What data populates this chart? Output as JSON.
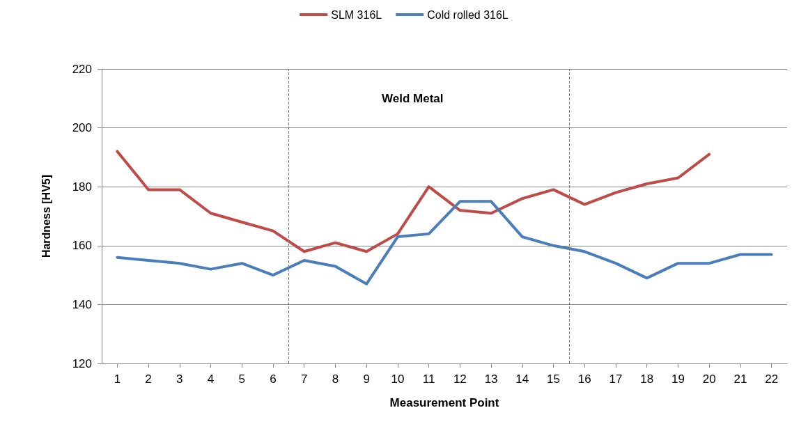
{
  "chart_data": {
    "type": "line",
    "xlabel": "Measurement Point",
    "ylabel": "Hardness [HV5]",
    "x": [
      1,
      2,
      3,
      4,
      5,
      6,
      7,
      8,
      9,
      10,
      11,
      12,
      13,
      14,
      15,
      16,
      17,
      18,
      19,
      20,
      21,
      22
    ],
    "series": [
      {
        "name": "SLM 316L",
        "color": "#be4b48",
        "values": [
          192,
          179,
          179,
          171,
          168,
          165,
          158,
          161,
          158,
          164,
          180,
          172,
          171,
          176,
          179,
          174,
          178,
          181,
          183,
          191,
          null,
          null
        ]
      },
      {
        "name": "Cold rolled 316L",
        "color": "#4a7ebb",
        "values": [
          156,
          155,
          154,
          152,
          154,
          150,
          155,
          153,
          147,
          163,
          164,
          175,
          175,
          163,
          160,
          158,
          154,
          149,
          154,
          154,
          157,
          157
        ]
      }
    ],
    "xlim": [
      0.5,
      22.5
    ],
    "xticks": [
      1,
      2,
      3,
      4,
      5,
      6,
      7,
      8,
      9,
      10,
      11,
      12,
      13,
      14,
      15,
      16,
      17,
      18,
      19,
      20,
      21,
      22
    ],
    "ylim": [
      120,
      220
    ],
    "yticks": [
      120,
      140,
      160,
      180,
      200,
      220
    ],
    "ref_lines": [
      {
        "axis": "x",
        "value": 6.5,
        "color": "#7f7f7f",
        "line_style": "dashed"
      },
      {
        "axis": "x",
        "value": 15.5,
        "color": "#7f7f7f",
        "line_style": "dashed"
      }
    ],
    "annotations": [
      "Weld Metal"
    ],
    "grid": "y",
    "legend": "top",
    "marker": "none",
    "line_style": "solid"
  }
}
